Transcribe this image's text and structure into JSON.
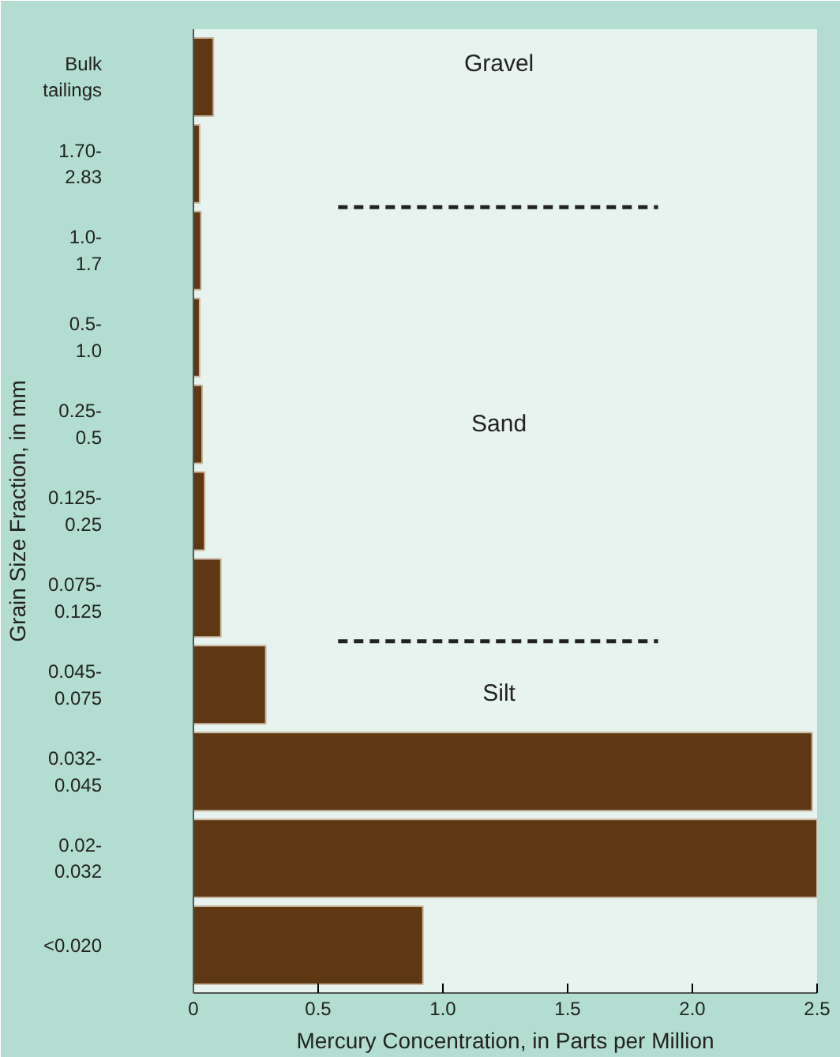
{
  "chart_data": {
    "type": "bar",
    "orientation": "horizontal",
    "categories": [
      "Bulk tailings",
      "1.70-2.83",
      "1.0-1.7",
      "0.5-1.0",
      "0.25-0.5",
      "0.125-0.25",
      "0.075-0.125",
      "0.045-0.075",
      "0.032-0.045",
      "0.02-0.032",
      "<0.020"
    ],
    "values": [
      0.08,
      0.025,
      0.03,
      0.025,
      0.035,
      0.045,
      0.11,
      0.29,
      2.48,
      2.5,
      0.92
    ],
    "color": "#5e3713",
    "xlabel": "Mercury Concentration, in Parts per Million",
    "ylabel": "Grain Size Fraction, in mm",
    "xlim": [
      0,
      2.5
    ],
    "xticks": [
      0,
      0.5,
      {
        "value": 1,
        "label": "1.0"
      },
      {
        "value": 1.5,
        "label": "1.5"
      },
      {
        "value": 2,
        "label": "2.0"
      },
      2.5
    ],
    "grid": false,
    "ref_lines": [
      {
        "axis": "y",
        "value": "1.70-2.83",
        "line_style": "dashed",
        "color": "#222222"
      },
      {
        "axis": "y",
        "value": "0.075-0.125",
        "line_style": "dashed",
        "color": "#222222"
      }
    ],
    "annotations": [
      "Gravel",
      "Sand",
      "Silt"
    ]
  }
}
